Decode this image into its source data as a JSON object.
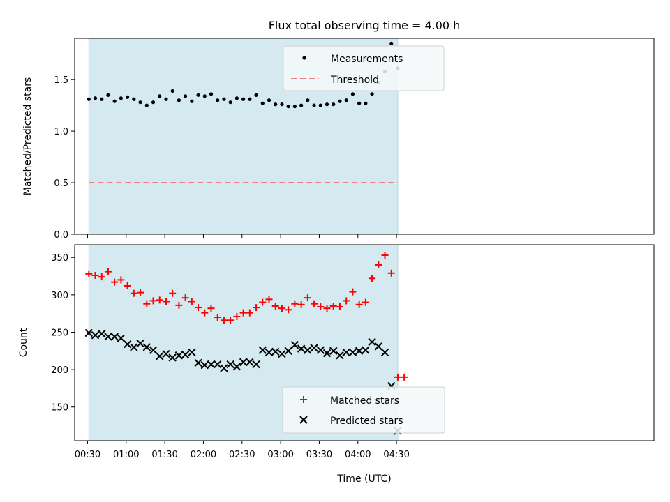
{
  "chart_data": [
    {
      "type": "scatter",
      "title": "Flux total observing time = 4.00 h",
      "ylabel": "Matched/Predicted stars",
      "xlabel": "",
      "x_unit": "minutes after 00:00 UTC",
      "xlim": [
        20,
        470
      ],
      "ylim": [
        0,
        1.9
      ],
      "yticks": [
        0.0,
        0.5,
        1.0,
        1.5
      ],
      "ytick_labels": [
        "0.0",
        "0.5",
        "1.0",
        "1.5"
      ],
      "shaded_span": [
        31,
        271
      ],
      "shade_color": "#d4eaf0",
      "legend_position": "top-center",
      "series": [
        {
          "name": "Measurements",
          "marker": "dot",
          "color": "#000000",
          "x": [
            31,
            36,
            41,
            46,
            51,
            56,
            61,
            66,
            71,
            76,
            81,
            86,
            91,
            96,
            101,
            106,
            111,
            116,
            121,
            126,
            131,
            136,
            141,
            146,
            151,
            156,
            161,
            166,
            171,
            176,
            181,
            186,
            191,
            196,
            201,
            206,
            211,
            216,
            221,
            226,
            231,
            236,
            241,
            246,
            251,
            256,
            261,
            266,
            271
          ],
          "y": [
            1.31,
            1.32,
            1.31,
            1.35,
            1.29,
            1.32,
            1.33,
            1.31,
            1.28,
            1.25,
            1.28,
            1.34,
            1.31,
            1.39,
            1.3,
            1.34,
            1.29,
            1.35,
            1.34,
            1.36,
            1.3,
            1.31,
            1.28,
            1.32,
            1.31,
            1.31,
            1.35,
            1.27,
            1.3,
            1.26,
            1.26,
            1.24,
            1.24,
            1.25,
            1.3,
            1.25,
            1.25,
            1.26,
            1.26,
            1.29,
            1.3,
            1.36,
            1.27,
            1.27,
            1.36,
            1.47,
            1.58,
            1.85,
            1.61
          ]
        },
        {
          "name": "Threshold",
          "marker": "dashed-line",
          "color": "#f07f7f",
          "x": [
            31,
            271
          ],
          "y": [
            0.5,
            0.5
          ]
        }
      ]
    },
    {
      "type": "scatter",
      "title": "",
      "ylabel": "Count",
      "xlabel": "Time (UTC)",
      "x_unit": "minutes after 00:00 UTC",
      "xlim": [
        20,
        470
      ],
      "ylim": [
        105,
        367
      ],
      "yticks": [
        150,
        200,
        250,
        300,
        350
      ],
      "ytick_labels": [
        "150",
        "200",
        "250",
        "300",
        "350"
      ],
      "xticks": [
        30,
        60,
        90,
        120,
        150,
        180,
        210,
        240,
        270
      ],
      "xtick_labels": [
        "00:30",
        "01:00",
        "01:30",
        "02:00",
        "02:30",
        "03:00",
        "03:30",
        "04:00",
        "04:30"
      ],
      "shaded_span": [
        31,
        271
      ],
      "shade_color": "#d4eaf0",
      "legend_position": "bottom-center",
      "series": [
        {
          "name": "Matched stars",
          "marker": "plus",
          "color": "#ff0000",
          "x": [
            31,
            36,
            41,
            46,
            51,
            56,
            61,
            66,
            71,
            76,
            81,
            86,
            91,
            96,
            101,
            106,
            111,
            116,
            121,
            126,
            131,
            136,
            141,
            146,
            151,
            156,
            161,
            166,
            171,
            176,
            181,
            186,
            191,
            196,
            201,
            206,
            211,
            216,
            221,
            226,
            231,
            236,
            241,
            246,
            251,
            256,
            261,
            266,
            271,
            276
          ],
          "y": [
            328,
            326,
            324,
            331,
            317,
            320,
            312,
            302,
            303,
            288,
            292,
            293,
            291,
            302,
            286,
            296,
            291,
            283,
            276,
            282,
            270,
            266,
            266,
            271,
            276,
            276,
            283,
            290,
            294,
            285,
            282,
            280,
            288,
            287,
            296,
            288,
            284,
            282,
            285,
            284,
            292,
            304,
            287,
            290,
            322,
            340,
            353,
            329,
            190,
            190
          ]
        },
        {
          "name": "Predicted stars",
          "marker": "x",
          "color": "#000000",
          "x": [
            31,
            36,
            41,
            46,
            51,
            56,
            61,
            66,
            71,
            76,
            81,
            86,
            91,
            96,
            101,
            106,
            111,
            116,
            121,
            126,
            131,
            136,
            141,
            146,
            151,
            156,
            161,
            166,
            171,
            176,
            181,
            186,
            191,
            196,
            201,
            206,
            211,
            216,
            221,
            226,
            231,
            236,
            241,
            246,
            251,
            256,
            261,
            266,
            271
          ],
          "y": [
            249,
            246,
            248,
            244,
            244,
            242,
            234,
            230,
            235,
            230,
            226,
            218,
            221,
            216,
            219,
            220,
            223,
            209,
            206,
            207,
            207,
            202,
            207,
            204,
            210,
            210,
            207,
            226,
            223,
            224,
            221,
            225,
            233,
            228,
            226,
            229,
            226,
            222,
            225,
            219,
            223,
            223,
            225,
            226,
            237,
            231,
            223,
            178,
            118
          ]
        }
      ]
    }
  ]
}
